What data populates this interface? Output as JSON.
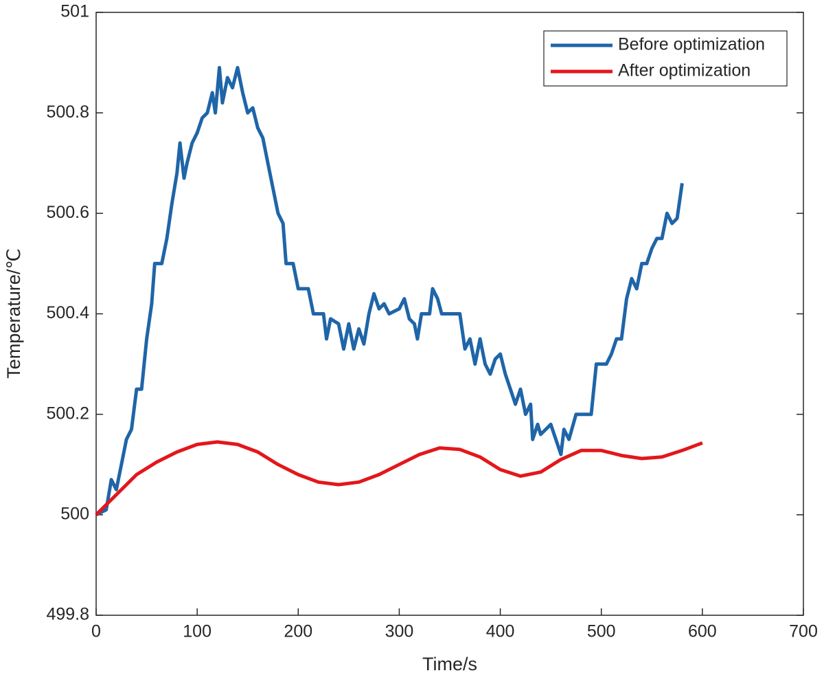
{
  "chart_data": {
    "type": "line",
    "xlabel": "Time/s",
    "ylabel": "Temperature/℃",
    "xlim": [
      0,
      700
    ],
    "xticks": [
      0,
      100,
      200,
      300,
      400,
      500,
      600,
      700
    ],
    "ylim": [
      499.8,
      501
    ],
    "yticks": [
      499.8,
      500,
      500.2,
      500.4,
      500.6,
      500.8,
      501
    ],
    "legend": "upper right",
    "grid": false,
    "series": [
      {
        "name": "Before optimization",
        "color": "#1f65a8",
        "x": [
          0,
          10,
          15,
          20,
          25,
          30,
          35,
          40,
          45,
          50,
          55,
          58,
          65,
          70,
          75,
          80,
          83,
          87,
          90,
          95,
          100,
          105,
          110,
          115,
          118,
          122,
          125,
          130,
          135,
          140,
          145,
          150,
          155,
          160,
          165,
          170,
          175,
          180,
          185,
          188,
          195,
          200,
          205,
          210,
          215,
          225,
          228,
          232,
          240,
          245,
          250,
          255,
          260,
          265,
          270,
          275,
          280,
          285,
          290,
          300,
          305,
          310,
          315,
          318,
          322,
          330,
          333,
          338,
          342,
          360,
          365,
          370,
          375,
          380,
          385,
          390,
          395,
          400,
          405,
          410,
          415,
          420,
          425,
          430,
          432,
          437,
          440,
          445,
          450,
          455,
          460,
          463,
          468,
          475,
          490,
          495,
          505,
          510,
          515,
          520,
          525,
          530,
          535,
          540,
          545,
          550,
          555,
          560,
          565,
          570,
          575,
          580
        ],
        "values": [
          500,
          500.01,
          500.07,
          500.05,
          500.1,
          500.15,
          500.17,
          500.25,
          500.25,
          500.35,
          500.42,
          500.5,
          500.5,
          500.55,
          500.62,
          500.68,
          500.74,
          500.67,
          500.7,
          500.74,
          500.76,
          500.79,
          500.8,
          500.84,
          500.8,
          500.89,
          500.82,
          500.87,
          500.85,
          500.89,
          500.84,
          500.8,
          500.81,
          500.77,
          500.75,
          500.7,
          500.65,
          500.6,
          500.58,
          500.5,
          500.5,
          500.45,
          500.45,
          500.45,
          500.4,
          500.4,
          500.35,
          500.39,
          500.38,
          500.33,
          500.38,
          500.33,
          500.37,
          500.34,
          500.4,
          500.44,
          500.41,
          500.42,
          500.4,
          500.41,
          500.43,
          500.39,
          500.38,
          500.35,
          500.4,
          500.4,
          500.45,
          500.43,
          500.4,
          500.4,
          500.33,
          500.35,
          500.3,
          500.35,
          500.3,
          500.28,
          500.31,
          500.32,
          500.28,
          500.25,
          500.22,
          500.25,
          500.2,
          500.22,
          500.15,
          500.18,
          500.16,
          500.17,
          500.18,
          500.15,
          500.12,
          500.17,
          500.15,
          500.2,
          500.2,
          500.3,
          500.3,
          500.32,
          500.35,
          500.35,
          500.43,
          500.47,
          500.45,
          500.5,
          500.5,
          500.53,
          500.55,
          500.55,
          500.6,
          500.58,
          500.59,
          500.66
        ]
      },
      {
        "name": "After optimization",
        "color": "#e3171b",
        "x": [
          0,
          20,
          40,
          60,
          80,
          100,
          120,
          140,
          160,
          180,
          200,
          220,
          240,
          260,
          280,
          300,
          320,
          340,
          360,
          380,
          400,
          420,
          440,
          460,
          480,
          500,
          520,
          540,
          560,
          580,
          600
        ],
        "values": [
          500,
          500.04,
          500.08,
          500.105,
          500.125,
          500.14,
          500.145,
          500.14,
          500.125,
          500.1,
          500.08,
          500.065,
          500.06,
          500.065,
          500.08,
          500.1,
          500.12,
          500.133,
          500.13,
          500.115,
          500.09,
          500.077,
          500.085,
          500.11,
          500.128,
          500.128,
          500.118,
          500.112,
          500.115,
          500.128,
          500.143
        ]
      }
    ]
  }
}
